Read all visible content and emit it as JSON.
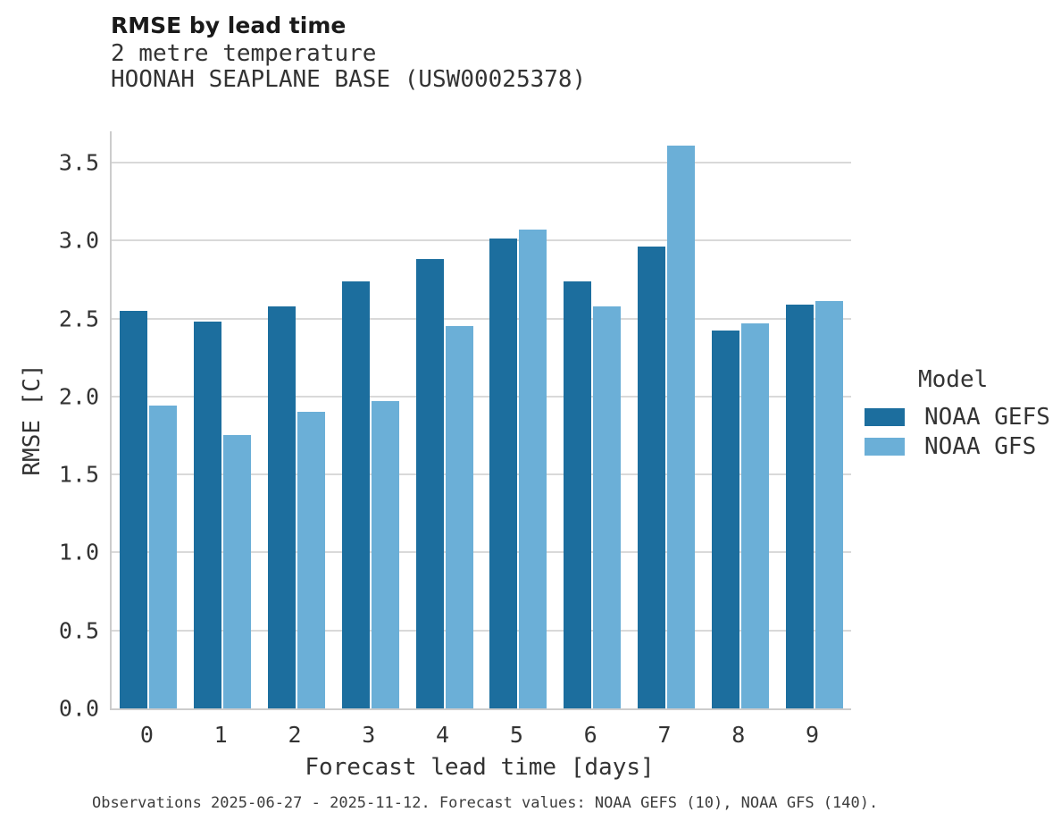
{
  "header": {
    "title": "RMSE by lead time",
    "subtitle_line1": "2 metre temperature",
    "subtitle_line2": "HOONAH SEAPLANE BASE (USW00025378)"
  },
  "chart_data": {
    "type": "bar",
    "title": "RMSE by lead time",
    "subtitle": "2 metre temperature — HOONAH SEAPLANE BASE (USW00025378)",
    "categories": [
      "0",
      "1",
      "2",
      "3",
      "4",
      "5",
      "6",
      "7",
      "8",
      "9"
    ],
    "series": [
      {
        "name": "NOAA GEFS",
        "color": "#1c6e9e",
        "values": [
          2.55,
          2.48,
          2.58,
          2.74,
          2.88,
          3.01,
          2.74,
          2.96,
          2.42,
          2.59
        ]
      },
      {
        "name": "NOAA GFS",
        "color": "#6bafd7",
        "values": [
          1.94,
          1.75,
          1.9,
          1.97,
          2.45,
          3.07,
          2.58,
          3.61,
          2.47,
          2.61
        ]
      }
    ],
    "xlabel": "Forecast lead time [days]",
    "ylabel": "RMSE [C]",
    "ylim": [
      0,
      3.7
    ],
    "yticks": [
      0.0,
      0.5,
      1.0,
      1.5,
      2.0,
      2.5,
      3.0,
      3.5
    ],
    "ytick_labels": [
      "0.0",
      "0.5",
      "1.0",
      "1.5",
      "2.0",
      "2.5",
      "3.0",
      "3.5"
    ],
    "grid": "horizontal",
    "grid_color": "#d9d9d9",
    "legend_position": "right"
  },
  "legend": {
    "title": "Model",
    "items": [
      {
        "label": "NOAA GEFS",
        "color": "#1c6e9e"
      },
      {
        "label": "NOAA GFS",
        "color": "#6bafd7"
      }
    ]
  },
  "footer": {
    "caption": "Observations 2025-06-27 - 2025-11-12. Forecast values: NOAA GEFS (10), NOAA GFS (140)."
  },
  "colors": {
    "background": "#ffffff",
    "axis_spine": "#cccccc",
    "gridline": "#d9d9d9",
    "text": "#333333"
  }
}
